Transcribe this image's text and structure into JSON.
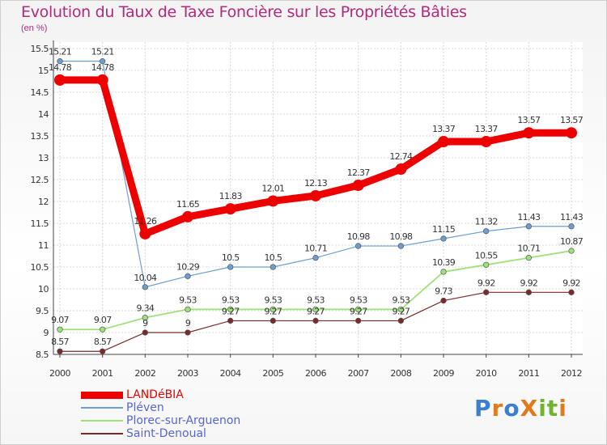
{
  "title": "Evolution du Taux de Taxe Foncière sur les Propriétés Bâties",
  "unit_label": "(en %)",
  "logo": {
    "text": "ProXiti",
    "letters": [
      {
        "ch": "P",
        "color": "#3a7fd0"
      },
      {
        "ch": "r",
        "color": "#e07a1e"
      },
      {
        "ch": "o",
        "color": "#3a7fd0"
      },
      {
        "ch": "X",
        "color": "#e07a1e"
      },
      {
        "ch": "i",
        "color": "#6fb32f"
      },
      {
        "ch": "t",
        "color": "#6fb32f"
      },
      {
        "ch": "i",
        "color": "#e07a1e"
      }
    ]
  },
  "chart_data": {
    "type": "line",
    "x": [
      "2000",
      "2001",
      "2002",
      "2003",
      "2004",
      "2005",
      "2006",
      "2007",
      "2008",
      "2009",
      "2010",
      "2011",
      "2012"
    ],
    "ylim": [
      8.5,
      15.5
    ],
    "yticks": [
      "8.5",
      "9",
      "9.5",
      "10",
      "10.5",
      "11",
      "11.5",
      "12",
      "12.5",
      "13",
      "13.5",
      "14",
      "14.5",
      "15",
      "15.5"
    ],
    "grid": true,
    "legend_position": "bottom-left",
    "series": [
      {
        "name": "LANDéBIA",
        "color": "#ee0000",
        "values": [
          14.78,
          14.78,
          11.26,
          11.65,
          11.83,
          12.01,
          12.13,
          12.37,
          12.74,
          13.37,
          13.37,
          13.57,
          13.57
        ],
        "labels": [
          "14.78",
          "14.78",
          "11.26",
          "11.65",
          "11.83",
          "12.01",
          "12.13",
          "12.37",
          "12.74",
          "13.37",
          "13.37",
          "13.57",
          "13.57"
        ]
      },
      {
        "name": "Pléven",
        "color": "#6b9fd0",
        "values": [
          15.21,
          15.21,
          10.04,
          10.29,
          10.5,
          10.5,
          10.71,
          10.98,
          10.98,
          11.15,
          11.32,
          11.43,
          11.43
        ],
        "labels": [
          "15.21",
          "15.21",
          "10.04",
          "10.29",
          "10.5",
          "10.5",
          "10.71",
          "10.98",
          "10.98",
          "11.15",
          "11.32",
          "11.43",
          "11.43"
        ]
      },
      {
        "name": "Plorec-sur-Arguenon",
        "color": "#9ee07a",
        "values": [
          9.07,
          9.07,
          9.34,
          9.53,
          9.53,
          9.53,
          9.53,
          9.53,
          9.53,
          10.39,
          10.55,
          10.71,
          10.87
        ],
        "labels": [
          "9.07",
          "9.07",
          "9.34",
          "9.53",
          "9.53",
          "9.53",
          "9.53",
          "9.53",
          "9.53",
          "10.39",
          "10.55",
          "10.71",
          "10.87"
        ]
      },
      {
        "name": "Saint-Denoual",
        "color": "#7a2a2a",
        "values": [
          8.57,
          8.57,
          9,
          9,
          9.27,
          9.27,
          9.27,
          9.27,
          9.27,
          9.73,
          9.92,
          9.92,
          9.92
        ],
        "labels": [
          "8.57",
          "8.57",
          "9",
          "9",
          "9.27",
          "9.27",
          "9.27",
          "9.27",
          "9.27",
          "9.73",
          "9.92",
          "9.92",
          "9.92"
        ]
      }
    ]
  }
}
